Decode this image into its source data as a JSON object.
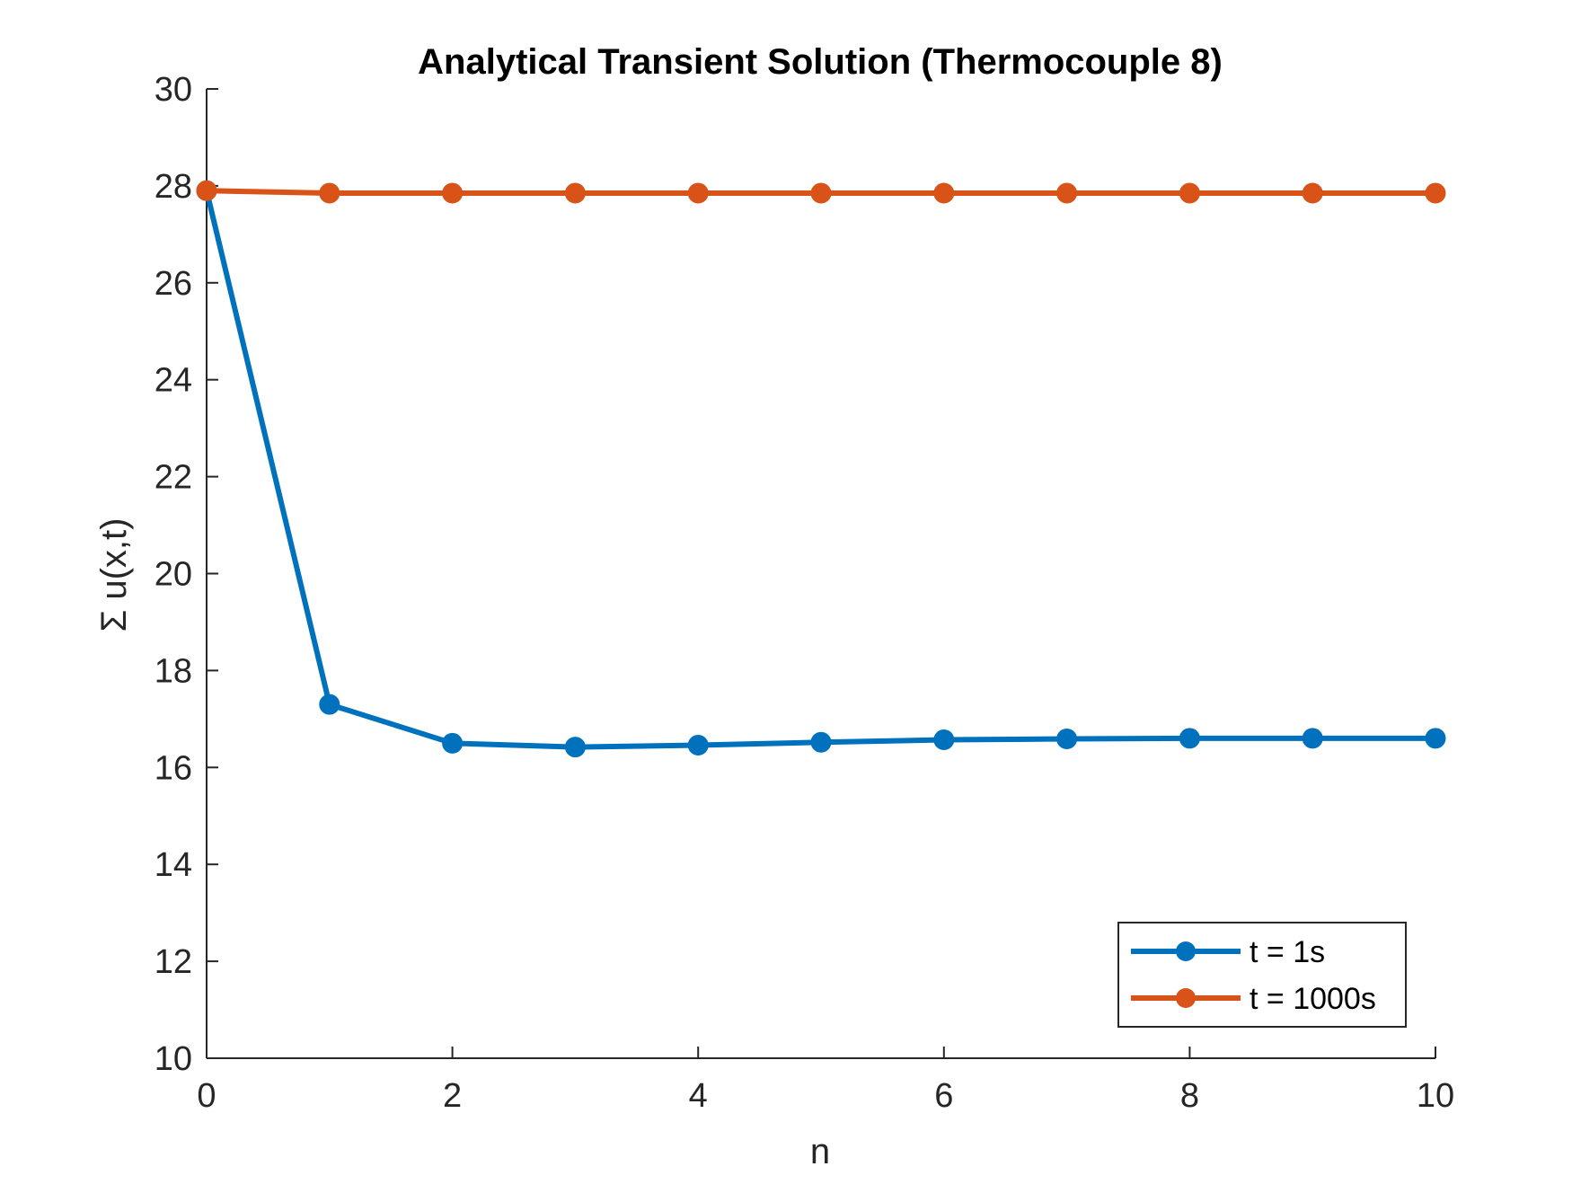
{
  "chart_data": {
    "type": "line",
    "title": "Analytical Transient Solution (Thermocouple 8)",
    "xlabel": "n",
    "ylabel": "Σ u(x,t)",
    "xlim": [
      0,
      10
    ],
    "ylim": [
      10,
      30
    ],
    "xticks": [
      0,
      2,
      4,
      6,
      8,
      10
    ],
    "yticks": [
      10,
      12,
      14,
      16,
      18,
      20,
      22,
      24,
      26,
      28,
      30
    ],
    "grid": false,
    "legend_position": "bottom-right",
    "x": [
      0,
      1,
      2,
      3,
      4,
      5,
      6,
      7,
      8,
      9,
      10
    ],
    "series": [
      {
        "name": "t = 1s",
        "color": "#0072BD",
        "marker": "circle",
        "values": [
          27.9,
          17.3,
          16.5,
          16.42,
          16.46,
          16.52,
          16.57,
          16.59,
          16.6,
          16.6,
          16.6
        ]
      },
      {
        "name": "t = 1000s",
        "color": "#D95319",
        "marker": "circle",
        "values": [
          27.9,
          27.85,
          27.85,
          27.85,
          27.85,
          27.85,
          27.85,
          27.85,
          27.85,
          27.85,
          27.85
        ]
      }
    ]
  }
}
